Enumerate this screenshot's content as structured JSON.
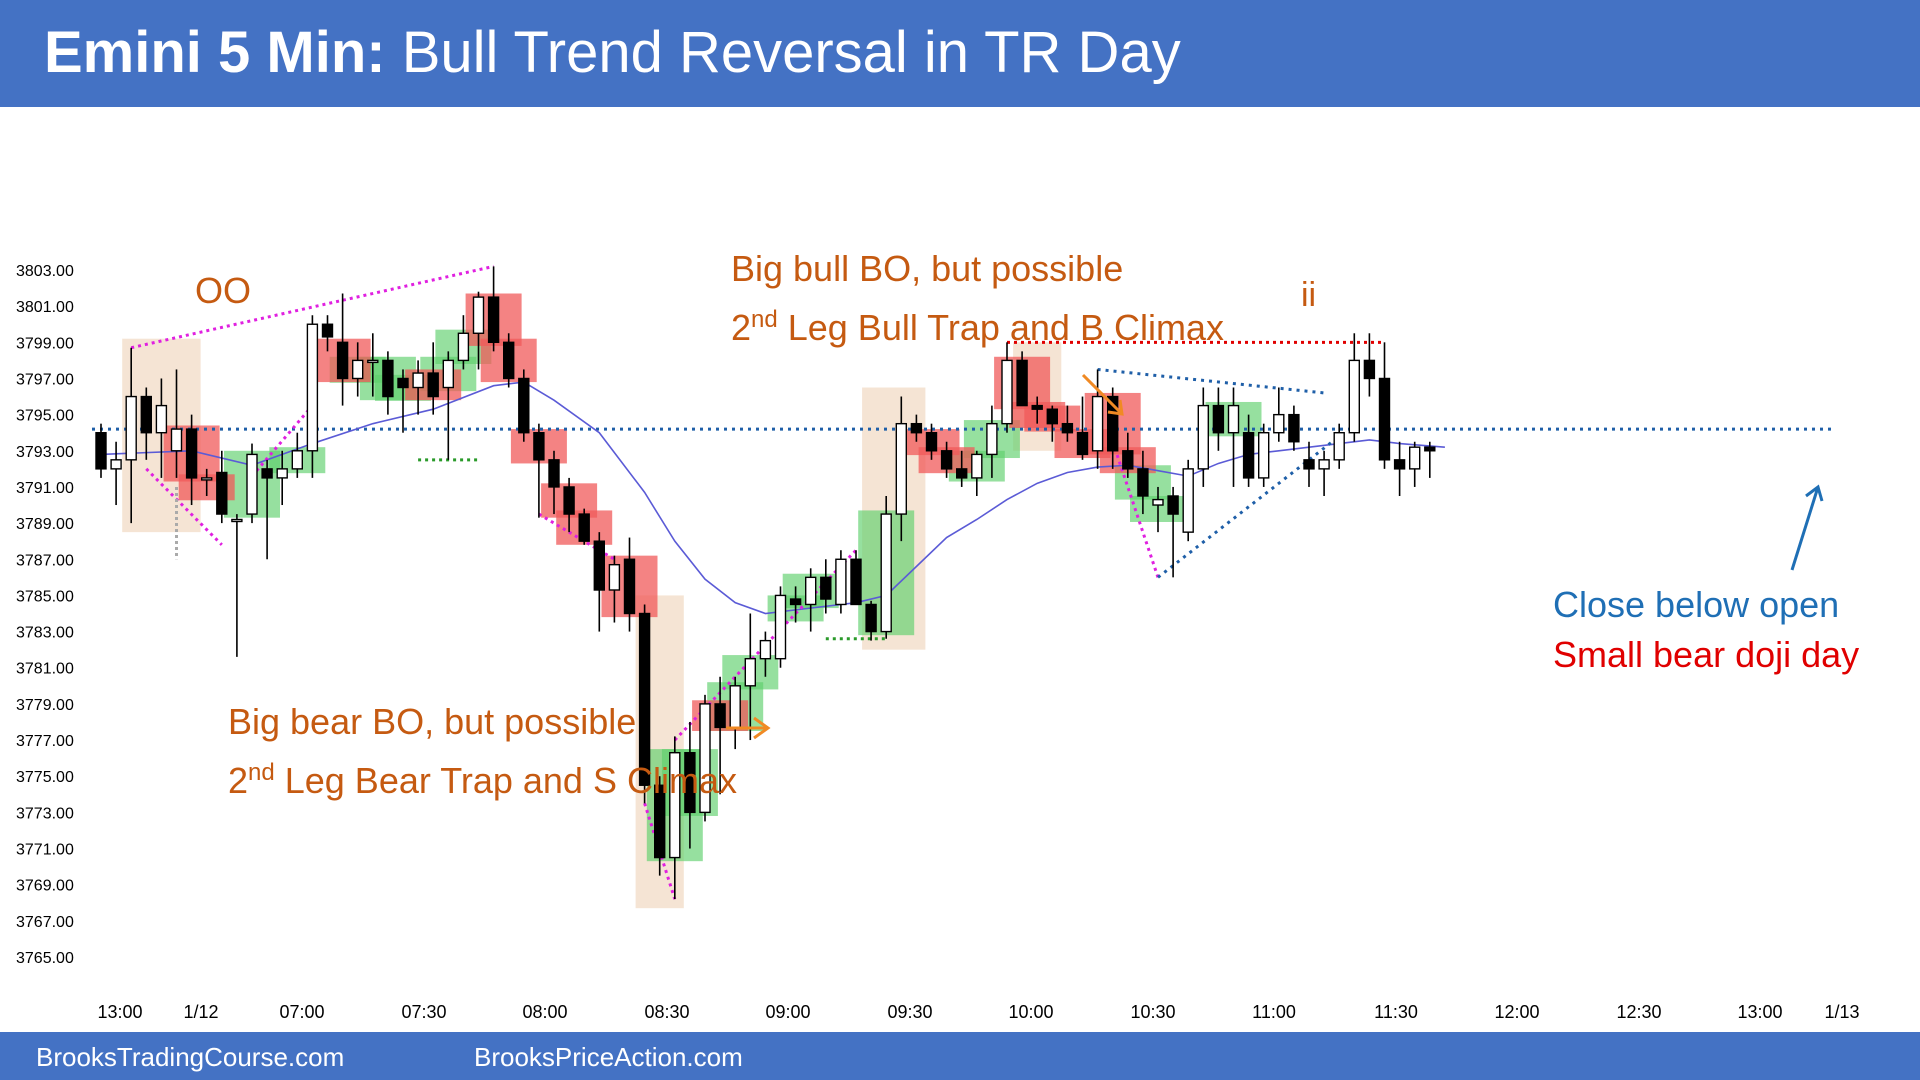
{
  "header": {
    "title_bold": "Emini 5 Min:",
    "title_rest": " Bull Trend Reversal in TR Day"
  },
  "footer": {
    "left": "BrooksTradingCourse.com",
    "right": "BrooksPriceAction.com"
  },
  "colors": {
    "header_bg": "#4472c4",
    "annotation_orange": "#c55a11",
    "close_note_blue": "#1f6fb5",
    "doji_note_red": "#e00000",
    "ema": "#5b5bd6",
    "bull_highlight": "#5dcf6c",
    "bear_highlight": "#f05a5a",
    "context_box": "#f2ddc9",
    "magenta_lines": "#e020e0"
  },
  "annotations": {
    "oo": "OO",
    "ii": "ii",
    "bull_bo_line1": "Big bull BO, but possible",
    "bull_bo_line2_prefix": "2",
    "bull_bo_line2_sup": "nd",
    "bull_bo_line2_rest": " Leg Bull Trap and B Climax",
    "bear_bo_line1": "Big bear BO, but possible",
    "bear_bo_line2_prefix": "2",
    "bear_bo_line2_sup": "nd",
    "bear_bo_line2_rest": " Leg Bear Trap and S Climax",
    "close_below_open": "Close below open",
    "small_bear_doji": "Small bear doji day"
  },
  "chart_data": {
    "type": "candlestick",
    "title": "Emini 5 Min: Bull Trend Reversal in TR Day",
    "y_ticks": [
      "3803.00",
      "3801.00",
      "3799.00",
      "3797.00",
      "3795.00",
      "3793.00",
      "3791.00",
      "3789.00",
      "3787.00",
      "3785.00",
      "3783.00",
      "3781.00",
      "3779.00",
      "3777.00",
      "3775.00",
      "3773.00",
      "3771.00",
      "3769.00",
      "3767.00",
      "3765.00"
    ],
    "ylim": [
      3765,
      3803
    ],
    "x_ticks": [
      "13:00",
      "1/12",
      "07:00",
      "07:30",
      "08:00",
      "08:30",
      "09:00",
      "09:30",
      "10:00",
      "10:30",
      "11:00",
      "11:30",
      "12:00",
      "12:30",
      "13:00",
      "1/13"
    ],
    "reference_level": 3794.2,
    "candles": [
      {
        "o": 3794.0,
        "h": 3794.5,
        "l": 3791.5,
        "c": 3792.0
      },
      {
        "o": 3792.0,
        "h": 3793.5,
        "l": 3790.0,
        "c": 3792.5
      },
      {
        "o": 3792.5,
        "h": 3798.7,
        "l": 3789.0,
        "c": 3796.0
      },
      {
        "o": 3796.0,
        "h": 3796.5,
        "l": 3792.5,
        "c": 3794.0
      },
      {
        "o": 3794.0,
        "h": 3797.0,
        "l": 3791.5,
        "c": 3795.5
      },
      {
        "o": 3793.0,
        "h": 3797.5,
        "l": 3791.5,
        "c": 3794.2
      },
      {
        "o": 3794.2,
        "h": 3795.0,
        "l": 3790.0,
        "c": 3791.5
      },
      {
        "o": 3791.5,
        "h": 3792.0,
        "l": 3790.5,
        "c": 3791.5
      },
      {
        "o": 3791.8,
        "h": 3793.0,
        "l": 3789.0,
        "c": 3789.5
      },
      {
        "o": 3789.2,
        "h": 3789.5,
        "l": 3781.6,
        "c": 3789.2
      },
      {
        "o": 3789.5,
        "h": 3793.4,
        "l": 3789.0,
        "c": 3792.8
      },
      {
        "o": 3792.0,
        "h": 3792.5,
        "l": 3787.0,
        "c": 3791.5
      },
      {
        "o": 3791.5,
        "h": 3793.0,
        "l": 3790.0,
        "c": 3792.0
      },
      {
        "o": 3792.0,
        "h": 3794.0,
        "l": 3791.5,
        "c": 3793.0
      },
      {
        "o": 3793.0,
        "h": 3800.5,
        "l": 3791.5,
        "c": 3800.0
      },
      {
        "o": 3800.0,
        "h": 3800.5,
        "l": 3798.5,
        "c": 3799.3
      },
      {
        "o": 3799.0,
        "h": 3801.7,
        "l": 3795.5,
        "c": 3797.0
      },
      {
        "o": 3797.0,
        "h": 3799.0,
        "l": 3796.0,
        "c": 3798.0
      },
      {
        "o": 3798.0,
        "h": 3799.5,
        "l": 3796.0,
        "c": 3798.0
      },
      {
        "o": 3798.0,
        "h": 3798.5,
        "l": 3795.0,
        "c": 3796.0
      },
      {
        "o": 3797.0,
        "h": 3797.5,
        "l": 3794.0,
        "c": 3796.5
      },
      {
        "o": 3796.5,
        "h": 3798.0,
        "l": 3795.0,
        "c": 3797.3
      },
      {
        "o": 3797.3,
        "h": 3799.0,
        "l": 3795.0,
        "c": 3796.0
      },
      {
        "o": 3796.5,
        "h": 3798.5,
        "l": 3792.5,
        "c": 3798.0
      },
      {
        "o": 3798.0,
        "h": 3800.5,
        "l": 3797.5,
        "c": 3799.5
      },
      {
        "o": 3799.5,
        "h": 3801.8,
        "l": 3797.5,
        "c": 3801.5
      },
      {
        "o": 3801.5,
        "h": 3803.2,
        "l": 3798.5,
        "c": 3799.0
      },
      {
        "o": 3799.0,
        "h": 3799.5,
        "l": 3796.5,
        "c": 3797.0
      },
      {
        "o": 3797.0,
        "h": 3797.5,
        "l": 3793.5,
        "c": 3794.0
      },
      {
        "o": 3794.0,
        "h": 3794.5,
        "l": 3789.3,
        "c": 3792.5
      },
      {
        "o": 3792.5,
        "h": 3793.0,
        "l": 3789.5,
        "c": 3791.0
      },
      {
        "o": 3791.0,
        "h": 3791.5,
        "l": 3788.5,
        "c": 3789.5
      },
      {
        "o": 3789.5,
        "h": 3789.8,
        "l": 3787.8,
        "c": 3788.0
      },
      {
        "o": 3788.0,
        "h": 3788.5,
        "l": 3783.0,
        "c": 3785.3
      },
      {
        "o": 3785.3,
        "h": 3787.2,
        "l": 3783.5,
        "c": 3786.7
      },
      {
        "o": 3787.0,
        "h": 3788.2,
        "l": 3783.0,
        "c": 3784.0
      },
      {
        "o": 3784.0,
        "h": 3784.5,
        "l": 3773.5,
        "c": 3774.5
      },
      {
        "o": 3774.5,
        "h": 3775.0,
        "l": 3769.5,
        "c": 3770.5
      },
      {
        "o": 3770.5,
        "h": 3777.2,
        "l": 3768.2,
        "c": 3776.3
      },
      {
        "o": 3776.3,
        "h": 3778.0,
        "l": 3771.0,
        "c": 3773.0
      },
      {
        "o": 3773.0,
        "h": 3779.5,
        "l": 3772.5,
        "c": 3779.0
      },
      {
        "o": 3779.0,
        "h": 3780.5,
        "l": 3774.0,
        "c": 3777.7
      },
      {
        "o": 3777.7,
        "h": 3780.5,
        "l": 3776.5,
        "c": 3780.0
      },
      {
        "o": 3780.0,
        "h": 3784.0,
        "l": 3777.0,
        "c": 3781.5
      },
      {
        "o": 3781.5,
        "h": 3783.0,
        "l": 3780.5,
        "c": 3782.5
      },
      {
        "o": 3781.5,
        "h": 3785.5,
        "l": 3781.0,
        "c": 3785.0
      },
      {
        "o": 3784.8,
        "h": 3785.5,
        "l": 3783.5,
        "c": 3784.5
      },
      {
        "o": 3784.5,
        "h": 3786.5,
        "l": 3783.0,
        "c": 3786.0
      },
      {
        "o": 3786.0,
        "h": 3787.0,
        "l": 3784.0,
        "c": 3784.8
      },
      {
        "o": 3784.5,
        "h": 3787.5,
        "l": 3784.0,
        "c": 3787.0
      },
      {
        "o": 3787.0,
        "h": 3787.5,
        "l": 3784.5,
        "c": 3784.5
      },
      {
        "o": 3784.5,
        "h": 3784.7,
        "l": 3782.5,
        "c": 3783.0
      },
      {
        "o": 3783.0,
        "h": 3790.5,
        "l": 3782.6,
        "c": 3789.5
      },
      {
        "o": 3789.5,
        "h": 3796.0,
        "l": 3788.0,
        "c": 3794.5
      },
      {
        "o": 3794.5,
        "h": 3795.0,
        "l": 3793.5,
        "c": 3794.0
      },
      {
        "o": 3794.0,
        "h": 3794.5,
        "l": 3792.5,
        "c": 3793.0
      },
      {
        "o": 3793.0,
        "h": 3793.5,
        "l": 3791.5,
        "c": 3792.0
      },
      {
        "o": 3792.0,
        "h": 3793.0,
        "l": 3791.0,
        "c": 3791.5
      },
      {
        "o": 3791.5,
        "h": 3793.0,
        "l": 3790.5,
        "c": 3792.8
      },
      {
        "o": 3792.8,
        "h": 3795.5,
        "l": 3791.5,
        "c": 3794.5
      },
      {
        "o": 3794.5,
        "h": 3799.0,
        "l": 3794.0,
        "c": 3798.0
      },
      {
        "o": 3798.0,
        "h": 3798.5,
        "l": 3795.5,
        "c": 3795.5
      },
      {
        "o": 3795.5,
        "h": 3796.0,
        "l": 3794.5,
        "c": 3795.3
      },
      {
        "o": 3795.3,
        "h": 3795.5,
        "l": 3793.5,
        "c": 3794.5
      },
      {
        "o": 3794.5,
        "h": 3795.5,
        "l": 3793.5,
        "c": 3794.0
      },
      {
        "o": 3794.0,
        "h": 3796.0,
        "l": 3792.5,
        "c": 3792.8
      },
      {
        "o": 3793.0,
        "h": 3797.5,
        "l": 3792.0,
        "c": 3796.0
      },
      {
        "o": 3796.0,
        "h": 3796.5,
        "l": 3792.0,
        "c": 3793.0
      },
      {
        "o": 3793.0,
        "h": 3794.0,
        "l": 3791.5,
        "c": 3792.0
      },
      {
        "o": 3792.0,
        "h": 3793.0,
        "l": 3789.5,
        "c": 3790.5
      },
      {
        "o": 3790.0,
        "h": 3791.0,
        "l": 3788.5,
        "c": 3790.3
      },
      {
        "o": 3790.5,
        "h": 3791.0,
        "l": 3786.0,
        "c": 3789.5
      },
      {
        "o": 3788.5,
        "h": 3792.5,
        "l": 3788.0,
        "c": 3792.0
      },
      {
        "o": 3792.0,
        "h": 3796.5,
        "l": 3791.0,
        "c": 3795.5
      },
      {
        "o": 3795.5,
        "h": 3796.5,
        "l": 3793.0,
        "c": 3794.0
      },
      {
        "o": 3794.0,
        "h": 3796.5,
        "l": 3791.0,
        "c": 3795.5
      },
      {
        "o": 3794.0,
        "h": 3795.0,
        "l": 3791.0,
        "c": 3791.5
      },
      {
        "o": 3791.5,
        "h": 3794.5,
        "l": 3791.0,
        "c": 3794.0
      },
      {
        "o": 3794.0,
        "h": 3796.5,
        "l": 3793.5,
        "c": 3795.0
      },
      {
        "o": 3795.0,
        "h": 3795.5,
        "l": 3793.0,
        "c": 3793.5
      },
      {
        "o": 3792.5,
        "h": 3793.5,
        "l": 3791.0,
        "c": 3792.0
      },
      {
        "o": 3792.0,
        "h": 3793.0,
        "l": 3790.5,
        "c": 3792.5
      },
      {
        "o": 3792.5,
        "h": 3794.5,
        "l": 3792.0,
        "c": 3794.0
      },
      {
        "o": 3794.0,
        "h": 3799.5,
        "l": 3793.5,
        "c": 3798.0
      },
      {
        "o": 3798.0,
        "h": 3799.5,
        "l": 3796.0,
        "c": 3797.0
      },
      {
        "o": 3797.0,
        "h": 3799.0,
        "l": 3792.0,
        "c": 3792.5
      },
      {
        "o": 3792.5,
        "h": 3793.5,
        "l": 3790.5,
        "c": 3792.0
      },
      {
        "o": 3792.0,
        "h": 3793.5,
        "l": 3791.0,
        "c": 3793.2
      },
      {
        "o": 3793.2,
        "h": 3793.5,
        "l": 3791.5,
        "c": 3793.0
      }
    ],
    "ema": [
      [
        0,
        3792.8
      ],
      [
        6,
        3793.0
      ],
      [
        10,
        3792.2
      ],
      [
        14,
        3793.4
      ],
      [
        18,
        3794.5
      ],
      [
        22,
        3795.3
      ],
      [
        26,
        3796.6
      ],
      [
        28,
        3796.8
      ],
      [
        30,
        3795.8
      ],
      [
        33,
        3794.0
      ],
      [
        36,
        3790.7
      ],
      [
        38,
        3788.0
      ],
      [
        40,
        3785.9
      ],
      [
        42,
        3784.6
      ],
      [
        44,
        3784.0
      ],
      [
        46,
        3784.2
      ],
      [
        50,
        3784.6
      ],
      [
        52,
        3785.0
      ],
      [
        54,
        3786.6
      ],
      [
        56,
        3788.2
      ],
      [
        58,
        3789.2
      ],
      [
        60,
        3790.3
      ],
      [
        62,
        3791.2
      ],
      [
        64,
        3791.8
      ],
      [
        66,
        3792.1
      ],
      [
        68,
        3792.2
      ],
      [
        70,
        3791.9
      ],
      [
        72,
        3791.6
      ],
      [
        74,
        3792.3
      ],
      [
        76,
        3792.8
      ],
      [
        78,
        3793.0
      ],
      [
        82,
        3793.4
      ],
      [
        84,
        3793.6
      ],
      [
        86,
        3793.4
      ],
      [
        89,
        3793.2
      ]
    ],
    "legend": "none",
    "grid": false
  }
}
